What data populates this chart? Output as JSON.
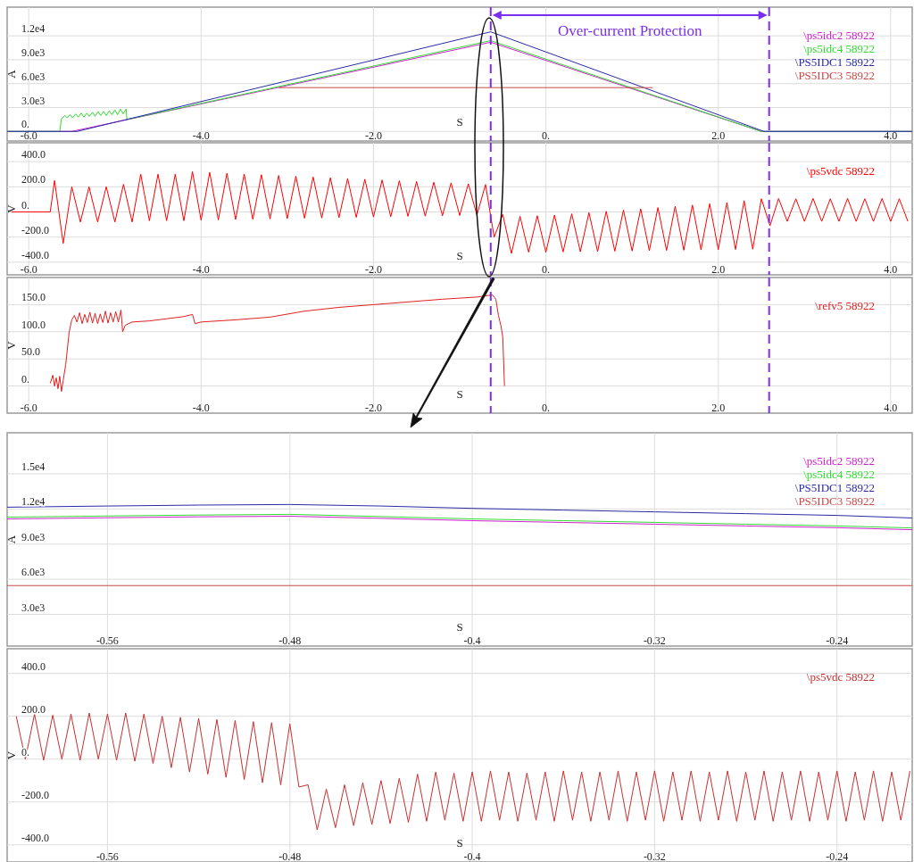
{
  "chart_data": [
    {
      "type": "line",
      "xlabel": "S",
      "ylabel": "A",
      "xlim": [
        -6.25,
        4.25
      ],
      "ylim": [
        -1200,
        15600
      ],
      "xticks": [
        {
          "value": -6,
          "label": "-6.0"
        },
        {
          "value": -4,
          "label": "-4.0"
        },
        {
          "value": -2,
          "label": "-2.0"
        },
        {
          "value": 0,
          "label": "0."
        },
        {
          "value": 2,
          "label": "2.0"
        },
        {
          "value": 4,
          "label": "4.0"
        }
      ],
      "yticks": [
        {
          "value": 0,
          "label": "0."
        },
        {
          "value": 3000,
          "label": "3.0e3"
        },
        {
          "value": 6000,
          "label": "6.0e3"
        },
        {
          "value": 9000,
          "label": "9.0e3"
        },
        {
          "value": 12000,
          "label": "1.2e4"
        }
      ],
      "grid": true,
      "legend": "top right",
      "ref_lines": [
        {
          "axis": "x",
          "value": -0.64,
          "color": "#7a2ff0",
          "line_style": "dashed"
        },
        {
          "axis": "x",
          "value": 2.59,
          "color": "#7a2ff0",
          "line_style": "dashed"
        }
      ],
      "annotations": [
        "Over-current Protection"
      ],
      "series": [
        {
          "name": "\\ps5idc2 58922",
          "color": "#d020d0",
          "x": [
            -6.25,
            -5.5,
            -0.64,
            2.5,
            4.25
          ],
          "values": [
            0,
            0,
            11200,
            0,
            0
          ]
        },
        {
          "name": "\\ps5idc4 58922",
          "color": "#30dd30",
          "x": [
            -6.25,
            -5.64,
            -5.62,
            -5.58,
            -5.555,
            -5.52,
            -5.49,
            -5.455,
            -5.425,
            -5.39,
            -5.36,
            -5.325,
            -5.295,
            -5.26,
            -5.23,
            -5.195,
            -5.165,
            -5.13,
            -5.1,
            -5.065,
            -5.035,
            -5.0,
            -4.97,
            -4.935,
            -4.905,
            -4.87,
            -4.86,
            -0.64,
            2.5,
            4.25
          ],
          "values": [
            0,
            0,
            1600,
            2000,
            1700,
            2100,
            1700,
            2200,
            1800,
            2300,
            1800,
            2300,
            1900,
            2400,
            1900,
            2500,
            2000,
            2500,
            2000,
            2600,
            2100,
            2700,
            2100,
            2800,
            2200,
            2800,
            1500,
            11400,
            0,
            0
          ]
        },
        {
          "name": "\\PS5IDC1 58922",
          "color": "#2a2aa8",
          "x": [
            -6.25,
            -5.44,
            -0.64,
            2.53,
            4.25
          ],
          "values": [
            0,
            0,
            12500,
            0,
            0
          ]
        },
        {
          "name": "\\PS5IDC3 58922",
          "color": "#c84848",
          "x": [
            -3.1,
            1.24
          ],
          "values": [
            5500,
            5500
          ]
        }
      ]
    },
    {
      "type": "line",
      "xlabel": "S",
      "ylabel": "V",
      "xlim": [
        -6.25,
        4.25
      ],
      "ylim": [
        -500,
        550
      ],
      "xticks": [
        {
          "value": -6,
          "label": "-6.0"
        },
        {
          "value": -4,
          "label": "-4.0"
        },
        {
          "value": -2,
          "label": "-2.0"
        },
        {
          "value": 0,
          "label": "0."
        },
        {
          "value": 2,
          "label": "2.0"
        },
        {
          "value": 4,
          "label": "4.0"
        }
      ],
      "yticks": [
        {
          "value": -400,
          "label": "-400.0"
        },
        {
          "value": -200,
          "label": "-200.0"
        },
        {
          "value": 0,
          "label": "0."
        },
        {
          "value": 200,
          "label": "200.0"
        },
        {
          "value": 400,
          "label": "400.0"
        }
      ],
      "grid": true,
      "legend": "top right",
      "ref_lines": [
        {
          "axis": "x",
          "value": -0.64,
          "color": "#7a2ff0",
          "line_style": "dashed"
        },
        {
          "axis": "x",
          "value": 2.59,
          "color": "#7a2ff0",
          "line_style": "dashed"
        }
      ],
      "series": [
        {
          "name": "\\ps5vdc 58922",
          "color": "#ff0000",
          "x": [
            -6.2,
            -5.75,
            -5.7,
            -5.6,
            -5.5,
            -5.4,
            -5.3,
            -5.2,
            -5.1,
            -5.0,
            -4.9,
            -4.8,
            -4.7,
            -4.6,
            -4.5,
            -4.4,
            -4.3,
            -4.2,
            -4.1,
            -4.0,
            -3.9,
            -3.8,
            -3.7,
            -3.6,
            -3.5,
            -3.4,
            -3.3,
            -3.2,
            -3.1,
            -3.0,
            -2.9,
            -2.8,
            -2.7,
            -2.6,
            -2.5,
            -2.4,
            -2.3,
            -2.2,
            -2.1,
            -2.0,
            -1.9,
            -1.8,
            -1.7,
            -1.6,
            -1.5,
            -1.4,
            -1.3,
            -1.2,
            -1.1,
            -1.0,
            -0.9,
            -0.8,
            -0.7,
            -0.6,
            -0.5,
            -0.4,
            -0.3,
            -0.2,
            -0.1,
            0.0,
            0.1,
            0.2,
            0.3,
            0.4,
            0.5,
            0.6,
            0.7,
            0.8,
            0.9,
            1.0,
            1.1,
            1.2,
            1.3,
            1.4,
            1.5,
            1.6,
            1.7,
            1.8,
            1.9,
            2.0,
            2.1,
            2.2,
            2.3,
            2.4,
            2.5,
            2.6,
            2.7,
            2.8,
            2.9,
            3.0,
            3.1,
            3.2,
            3.3,
            3.4,
            3.5,
            3.6,
            3.7,
            3.8,
            3.9,
            4.0,
            4.1,
            4.2
          ],
          "values": [
            0,
            0,
            250,
            -250,
            200,
            -80,
            200,
            -80,
            200,
            -80,
            220,
            -80,
            300,
            -70,
            300,
            -70,
            300,
            -70,
            320,
            -65,
            314,
            -63,
            308,
            -60,
            302,
            -58,
            296,
            -55,
            290,
            -53,
            284,
            -50,
            278,
            -48,
            272,
            -45,
            266,
            -43,
            260,
            -40,
            254,
            -38,
            248,
            -35,
            242,
            -33,
            236,
            -30,
            230,
            -28,
            224,
            -25,
            218,
            -200,
            -20,
            -330,
            -35,
            -320,
            -30,
            -320,
            -25,
            -318,
            -15,
            -316,
            -5,
            -314,
            5,
            -312,
            15,
            -310,
            25,
            -308,
            35,
            -306,
            45,
            -304,
            55,
            -302,
            65,
            -300,
            75,
            -298,
            90,
            -296,
            105,
            -110,
            107,
            -75,
            105,
            -75,
            107,
            -75,
            105,
            -75,
            107,
            -75,
            105,
            -75,
            107,
            -75,
            105,
            -75
          ]
        }
      ]
    },
    {
      "type": "line",
      "xlabel": "S",
      "ylabel": "V",
      "xlim": [
        -6.25,
        4.25
      ],
      "ylim": [
        -50,
        200
      ],
      "xticks": [
        {
          "value": -6,
          "label": "-6.0"
        },
        {
          "value": -4,
          "label": "-4.0"
        },
        {
          "value": -2,
          "label": "-2.0"
        },
        {
          "value": 0,
          "label": "0."
        },
        {
          "value": 2,
          "label": "2.0"
        },
        {
          "value": 4,
          "label": "4.0"
        }
      ],
      "yticks": [
        {
          "value": 0,
          "label": "0."
        },
        {
          "value": 50,
          "label": "50.0"
        },
        {
          "value": 100,
          "label": "100.0"
        },
        {
          "value": 150,
          "label": "150.0"
        }
      ],
      "grid": true,
      "legend": "top right",
      "ref_lines": [
        {
          "axis": "x",
          "value": -0.64,
          "color": "#7a2ff0",
          "line_style": "dashed"
        },
        {
          "axis": "x",
          "value": 2.59,
          "color": "#7a2ff0",
          "line_style": "dashed"
        }
      ],
      "series": [
        {
          "name": "\\refv5 58922",
          "color": "#e02020",
          "x": [
            -5.75,
            -5.72,
            -5.7,
            -5.68,
            -5.66,
            -5.64,
            -5.62,
            -5.6,
            -5.57,
            -5.53,
            -5.5,
            -5.47,
            -5.44,
            -5.41,
            -5.38,
            -5.35,
            -5.32,
            -5.29,
            -5.26,
            -5.23,
            -5.2,
            -5.17,
            -5.14,
            -5.11,
            -5.08,
            -5.05,
            -5.02,
            -4.99,
            -4.96,
            -4.93,
            -4.91,
            -4.88,
            -4.8,
            -4.6,
            -4.4,
            -4.2,
            -4.1,
            -4.07,
            -4.0,
            -3.6,
            -3.2,
            -2.8,
            -2.4,
            -2.0,
            -1.6,
            -1.2,
            -0.8,
            -0.62,
            -0.58,
            -0.55,
            -0.52,
            -0.5,
            -0.48
          ],
          "values": [
            5,
            20,
            0,
            15,
            -5,
            18,
            -10,
            10,
            40,
            100,
            122,
            130,
            118,
            135,
            115,
            132,
            117,
            136,
            116,
            134,
            115,
            133,
            117,
            138,
            116,
            135,
            118,
            137,
            118,
            140,
            100,
            112,
            118,
            120,
            124,
            128,
            132,
            115,
            118,
            122,
            127,
            138,
            145,
            150,
            155,
            160,
            164,
            168,
            160,
            130,
            110,
            90,
            0
          ]
        }
      ]
    },
    {
      "type": "line",
      "xlabel": "S",
      "ylabel": "A",
      "xlim": [
        -0.604,
        -0.207
      ],
      "ylim": [
        300,
        18500
      ],
      "xticks": [
        -0.56,
        -0.48,
        -0.4,
        -0.32,
        -0.24
      ],
      "yticks": [
        {
          "value": 3000,
          "label": "3.0e3"
        },
        {
          "value": 6000,
          "label": "6.0e3"
        },
        {
          "value": 9000,
          "label": "9.0e3"
        },
        {
          "value": 12000,
          "label": "1.2e4"
        },
        {
          "value": 15000,
          "label": "1.5e4"
        }
      ],
      "grid": true,
      "legend": "top right",
      "series": [
        {
          "name": "\\ps5idc2 58922",
          "color": "#d020d0",
          "x": [
            -0.604,
            -0.56,
            -0.52,
            -0.48,
            -0.44,
            -0.4,
            -0.36,
            -0.32,
            -0.28,
            -0.24,
            -0.207
          ],
          "values": [
            11150,
            11250,
            11330,
            11380,
            11200,
            11000,
            10850,
            10700,
            10550,
            10400,
            10230
          ]
        },
        {
          "name": "\\ps5idc4 58922",
          "color": "#30dd30",
          "x": [
            -0.604,
            -0.56,
            -0.52,
            -0.48,
            -0.44,
            -0.4,
            -0.36,
            -0.32,
            -0.28,
            -0.24,
            -0.207
          ],
          "values": [
            11300,
            11400,
            11480,
            11540,
            11350,
            11150,
            11000,
            10850,
            10700,
            10550,
            10380
          ]
        },
        {
          "name": "\\PS5IDC1 58922",
          "color": "#2a2aa8",
          "x": [
            -0.604,
            -0.56,
            -0.52,
            -0.48,
            -0.44,
            -0.4,
            -0.36,
            -0.32,
            -0.28,
            -0.24,
            -0.207
          ],
          "values": [
            12150,
            12250,
            12330,
            12380,
            12250,
            12050,
            11900,
            11750,
            11600,
            11450,
            11230
          ]
        },
        {
          "name": "\\PS5IDC3 58922",
          "color": "#c84848",
          "x": [
            -0.604,
            -0.207
          ],
          "values": [
            5460,
            5460
          ]
        }
      ]
    },
    {
      "type": "line",
      "xlabel": "S",
      "ylabel": "V",
      "xlim": [
        -0.604,
        -0.207
      ],
      "ylim": [
        -480,
        515
      ],
      "xticks": [
        -0.56,
        -0.48,
        -0.4,
        -0.32,
        -0.24
      ],
      "yticks": [
        {
          "value": -400,
          "label": "-400.0"
        },
        {
          "value": -200,
          "label": "-200.0"
        },
        {
          "value": 0,
          "label": "0."
        },
        {
          "value": 200,
          "label": "200.0"
        },
        {
          "value": 400,
          "label": "400.0"
        }
      ],
      "grid": true,
      "legend": "top right",
      "series": [
        {
          "name": "\\ps5vdc 58922",
          "color": "#c83030",
          "x": [
            -0.6,
            -0.596,
            -0.592,
            -0.588,
            -0.584,
            -0.58,
            -0.576,
            -0.572,
            -0.568,
            -0.564,
            -0.56,
            -0.556,
            -0.552,
            -0.548,
            -0.544,
            -0.54,
            -0.536,
            -0.532,
            -0.528,
            -0.524,
            -0.52,
            -0.516,
            -0.512,
            -0.508,
            -0.504,
            -0.5,
            -0.496,
            -0.492,
            -0.488,
            -0.484,
            -0.48,
            -0.476,
            -0.472,
            -0.468,
            -0.464,
            -0.46,
            -0.456,
            -0.452,
            -0.448,
            -0.444,
            -0.44,
            -0.436,
            -0.432,
            -0.428,
            -0.424,
            -0.42,
            -0.416,
            -0.412,
            -0.408,
            -0.404,
            -0.4,
            -0.396,
            -0.392,
            -0.388,
            -0.384,
            -0.38,
            -0.376,
            -0.372,
            -0.368,
            -0.364,
            -0.36,
            -0.356,
            -0.352,
            -0.348,
            -0.344,
            -0.34,
            -0.336,
            -0.332,
            -0.328,
            -0.324,
            -0.32,
            -0.316,
            -0.312,
            -0.308,
            -0.304,
            -0.3,
            -0.296,
            -0.292,
            -0.288,
            -0.284,
            -0.28,
            -0.276,
            -0.272,
            -0.268,
            -0.264,
            -0.26,
            -0.256,
            -0.252,
            -0.248,
            -0.244,
            -0.24,
            -0.236,
            -0.232,
            -0.228,
            -0.224,
            -0.22,
            -0.216,
            -0.212,
            -0.208
          ],
          "values": [
            200,
            0,
            210,
            -5,
            205,
            0,
            210,
            -5,
            215,
            0,
            210,
            -5,
            215,
            -10,
            210,
            -20,
            200,
            -40,
            195,
            -60,
            190,
            -70,
            185,
            -85,
            180,
            -95,
            175,
            -110,
            170,
            -120,
            165,
            -130,
            -120,
            -330,
            -140,
            -320,
            -120,
            -310,
            -110,
            -305,
            -100,
            -300,
            -90,
            -295,
            -70,
            -290,
            -60,
            -285,
            -65,
            -290,
            -60,
            -290,
            -55,
            -285,
            -60,
            -290,
            -65,
            -285,
            -60,
            -290,
            -55,
            -285,
            -60,
            -290,
            -60,
            -285,
            -55,
            -290,
            -60,
            -285,
            -55,
            -290,
            -60,
            -285,
            -55,
            -290,
            -60,
            -285,
            -55,
            -290,
            -60,
            -285,
            -55,
            -290,
            -60,
            -285,
            -55,
            -290,
            -60,
            -285,
            -55,
            -290,
            -60,
            -285,
            -55,
            -290,
            -60,
            -285,
            -55
          ]
        }
      ]
    }
  ]
}
